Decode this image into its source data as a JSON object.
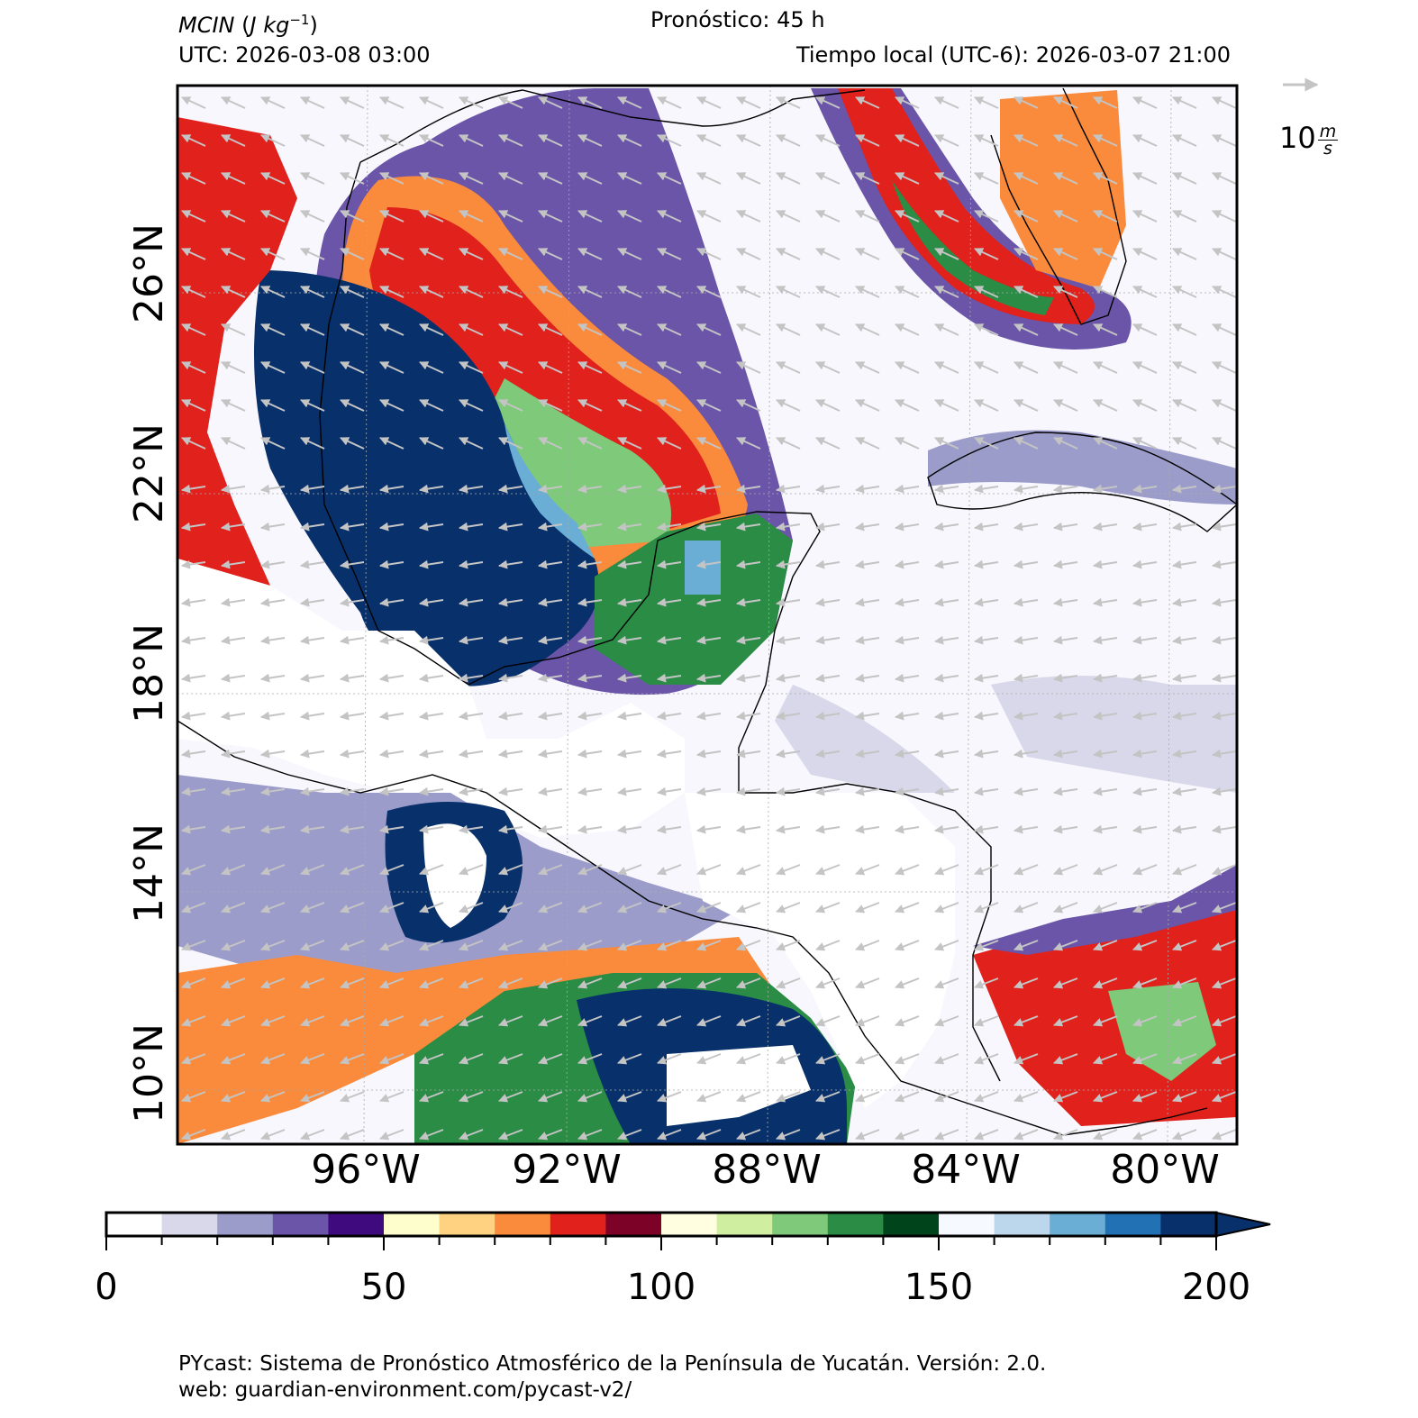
{
  "header": {
    "variable": "MCIN",
    "units_base": "J kg",
    "units_exp": "−1",
    "forecast": "Pronóstico: 45 h",
    "utc": "UTC:  2026-03-08 03:00",
    "local_time": "Tiempo local (UTC-6): 2026-03-07 21:00"
  },
  "vector_reference": {
    "value": "10",
    "unit_num": "m",
    "unit_den": "s"
  },
  "map": {
    "lat_labels": [
      "26°N",
      "22°N",
      "18°N",
      "14°N",
      "10°N"
    ],
    "lon_labels": [
      "96°W",
      "92°W",
      "88°W",
      "84°W",
      "80°W"
    ]
  },
  "colorbar": {
    "min": 0,
    "max": 200,
    "step": 10,
    "extend": "max",
    "tick_labels": [
      "0",
      "50",
      "100",
      "150",
      "200"
    ],
    "colors": [
      "#ffffff",
      "#d8d8ea",
      "#9c9ccb",
      "#6b55a8",
      "#3f0a7e",
      "#fefdcc",
      "#fed281",
      "#fa8b3c",
      "#e0211c",
      "#7d0227",
      "#fffee0",
      "#cfee9f",
      "#7ec97a",
      "#2a8c45",
      "#00441b",
      "#f6f9ff",
      "#bcd6ec",
      "#6aaed6",
      "#2271b5",
      "#08306b"
    ]
  },
  "footer": {
    "line1": "PYcast: Sistema de Pronóstico Atmosférico de la Península de Yucatán. Versión: 2.0.",
    "line2": "web: guardian-environment.com/pycast-v2/"
  }
}
